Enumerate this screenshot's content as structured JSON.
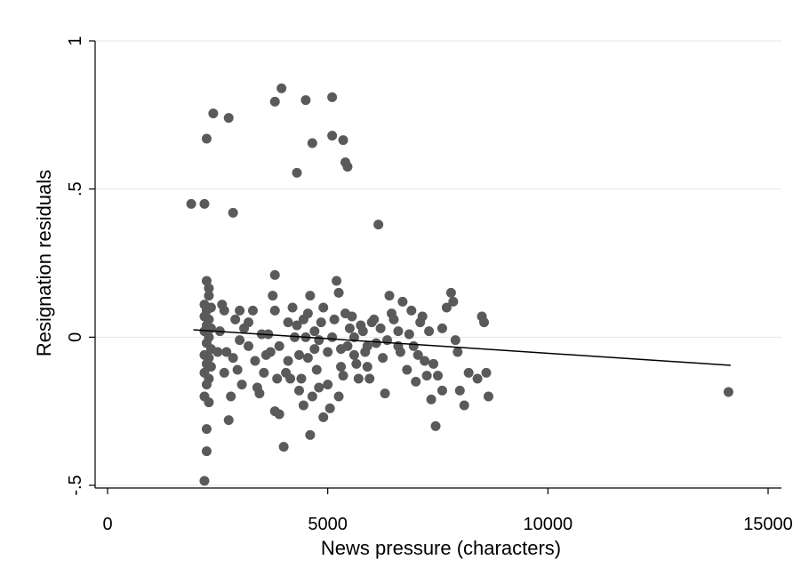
{
  "chart_data": {
    "type": "scatter",
    "xlabel": "News pressure (characters)",
    "ylabel": "Resignation residuals",
    "xlim": [
      0,
      15000
    ],
    "ylim": [
      -0.5,
      1
    ],
    "x_ticks": [
      0,
      5000,
      10000,
      15000
    ],
    "y_ticks": [
      -0.5,
      0,
      0.5,
      1
    ],
    "x_tick_labels": [
      "0",
      "5000",
      "10000",
      "15000"
    ],
    "y_tick_labels": [
      "-.5",
      "0",
      ".5",
      "1"
    ],
    "grid": "horizontal",
    "legend": "none",
    "colors": {
      "points": "#5a5a5a",
      "line": "#000000",
      "grid": "#e6e6e6",
      "axis": "#000000"
    },
    "fit_line": {
      "x": [
        1950,
        14150
      ],
      "y": [
        0.025,
        -0.095
      ]
    },
    "points": [
      [
        1900,
        0.45
      ],
      [
        2200,
        0.45
      ],
      [
        2250,
        0.67
      ],
      [
        2400,
        0.755
      ],
      [
        2750,
        0.74
      ],
      [
        2850,
        0.42
      ],
      [
        3800,
        0.795
      ],
      [
        3950,
        0.84
      ],
      [
        4500,
        0.8
      ],
      [
        5100,
        0.81
      ],
      [
        4650,
        0.655
      ],
      [
        5100,
        0.68
      ],
      [
        5350,
        0.665
      ],
      [
        4300,
        0.555
      ],
      [
        5400,
        0.59
      ],
      [
        5450,
        0.575
      ],
      [
        6150,
        0.38
      ],
      [
        2250,
        0.19
      ],
      [
        2300,
        0.165
      ],
      [
        2300,
        0.14
      ],
      [
        2200,
        0.11
      ],
      [
        2250,
        0.09
      ],
      [
        2350,
        0.1
      ],
      [
        2200,
        0.07
      ],
      [
        2300,
        0.06
      ],
      [
        2250,
        0.04
      ],
      [
        2350,
        0.03
      ],
      [
        2200,
        0.02
      ],
      [
        2300,
        0.0
      ],
      [
        2250,
        -0.02
      ],
      [
        2350,
        -0.04
      ],
      [
        2200,
        -0.06
      ],
      [
        2300,
        -0.07
      ],
      [
        2250,
        -0.09
      ],
      [
        2350,
        -0.1
      ],
      [
        2200,
        -0.12
      ],
      [
        2300,
        -0.14
      ],
      [
        2250,
        -0.16
      ],
      [
        2200,
        -0.2
      ],
      [
        2300,
        -0.22
      ],
      [
        2250,
        -0.31
      ],
      [
        2250,
        -0.385
      ],
      [
        2200,
        -0.485
      ],
      [
        2500,
        -0.05
      ],
      [
        2550,
        0.02
      ],
      [
        2600,
        0.11
      ],
      [
        2650,
        0.09
      ],
      [
        2700,
        -0.05
      ],
      [
        2750,
        -0.28
      ],
      [
        2800,
        -0.2
      ],
      [
        2900,
        0.06
      ],
      [
        3000,
        0.09
      ],
      [
        2950,
        -0.11
      ],
      [
        3100,
        0.03
      ],
      [
        3200,
        -0.03
      ],
      [
        3300,
        0.09
      ],
      [
        3400,
        -0.17
      ],
      [
        3500,
        0.01
      ],
      [
        3600,
        -0.06
      ],
      [
        3700,
        -0.05
      ],
      [
        3800,
        0.21
      ],
      [
        3750,
        0.14
      ],
      [
        3800,
        0.09
      ],
      [
        3850,
        -0.14
      ],
      [
        3800,
        -0.25
      ],
      [
        3900,
        -0.26
      ],
      [
        4000,
        -0.37
      ],
      [
        4050,
        -0.12
      ],
      [
        4100,
        0.05
      ],
      [
        4200,
        0.1
      ],
      [
        4300,
        0.04
      ],
      [
        4350,
        -0.06
      ],
      [
        4400,
        -0.14
      ],
      [
        4450,
        -0.23
      ],
      [
        4500,
        0.0
      ],
      [
        4550,
        0.08
      ],
      [
        4600,
        0.14
      ],
      [
        4600,
        -0.33
      ],
      [
        4650,
        -0.2
      ],
      [
        4700,
        0.02
      ],
      [
        4750,
        -0.11
      ],
      [
        4800,
        -0.17
      ],
      [
        4850,
        0.05
      ],
      [
        4900,
        -0.27
      ],
      [
        5000,
        -0.05
      ],
      [
        5100,
        0.0
      ],
      [
        5200,
        0.19
      ],
      [
        5250,
        0.15
      ],
      [
        5300,
        -0.1
      ],
      [
        5250,
        -0.2
      ],
      [
        5350,
        -0.13
      ],
      [
        5400,
        0.08
      ],
      [
        5500,
        0.03
      ],
      [
        5600,
        -0.06
      ],
      [
        5700,
        -0.14
      ],
      [
        5800,
        0.02
      ],
      [
        5850,
        -0.05
      ],
      [
        5900,
        -0.1
      ],
      [
        6000,
        0.05
      ],
      [
        6100,
        -0.02
      ],
      [
        6200,
        0.03
      ],
      [
        6300,
        -0.19
      ],
      [
        6400,
        0.14
      ],
      [
        6500,
        0.06
      ],
      [
        6600,
        -0.03
      ],
      [
        6700,
        0.12
      ],
      [
        6800,
        -0.11
      ],
      [
        6900,
        0.09
      ],
      [
        7000,
        -0.15
      ],
      [
        7100,
        0.05
      ],
      [
        7200,
        -0.08
      ],
      [
        7300,
        0.02
      ],
      [
        7350,
        -0.21
      ],
      [
        7400,
        -0.09
      ],
      [
        7450,
        -0.3
      ],
      [
        7500,
        -0.13
      ],
      [
        7600,
        -0.18
      ],
      [
        7700,
        0.1
      ],
      [
        7800,
        0.15
      ],
      [
        7850,
        0.12
      ],
      [
        7900,
        -0.01
      ],
      [
        7950,
        -0.05
      ],
      [
        8000,
        -0.18
      ],
      [
        8100,
        -0.23
      ],
      [
        8200,
        -0.12
      ],
      [
        8400,
        -0.14
      ],
      [
        8500,
        0.07
      ],
      [
        8550,
        0.05
      ],
      [
        8600,
        -0.12
      ],
      [
        8650,
        -0.2
      ],
      [
        14100,
        -0.185
      ],
      [
        3000,
        -0.01
      ],
      [
        3200,
        0.05
      ],
      [
        3450,
        -0.19
      ],
      [
        3650,
        0.01
      ],
      [
        4150,
        -0.14
      ],
      [
        4250,
        0.0
      ],
      [
        4450,
        0.06
      ],
      [
        4700,
        -0.04
      ],
      [
        4900,
        0.1
      ],
      [
        5050,
        -0.24
      ],
      [
        5150,
        0.06
      ],
      [
        5450,
        -0.03
      ],
      [
        5550,
        0.07
      ],
      [
        5650,
        -0.09
      ],
      [
        5750,
        0.04
      ],
      [
        5950,
        -0.14
      ],
      [
        6050,
        0.06
      ],
      [
        6250,
        -0.07
      ],
      [
        6450,
        0.08
      ],
      [
        6650,
        -0.05
      ],
      [
        6850,
        0.01
      ],
      [
        7050,
        -0.06
      ],
      [
        7150,
        0.07
      ],
      [
        7250,
        -0.13
      ],
      [
        2650,
        -0.12
      ],
      [
        2850,
        -0.07
      ],
      [
        3050,
        -0.16
      ],
      [
        3350,
        -0.08
      ],
      [
        3550,
        -0.12
      ],
      [
        3900,
        -0.03
      ],
      [
        4100,
        -0.08
      ],
      [
        4350,
        -0.18
      ],
      [
        4550,
        -0.07
      ],
      [
        4800,
        -0.01
      ],
      [
        5000,
        -0.16
      ],
      [
        5300,
        -0.04
      ],
      [
        5600,
        0.0
      ],
      [
        5900,
        -0.03
      ],
      [
        6350,
        -0.01
      ],
      [
        6600,
        0.02
      ],
      [
        6950,
        -0.03
      ],
      [
        7600,
        0.03
      ]
    ]
  }
}
